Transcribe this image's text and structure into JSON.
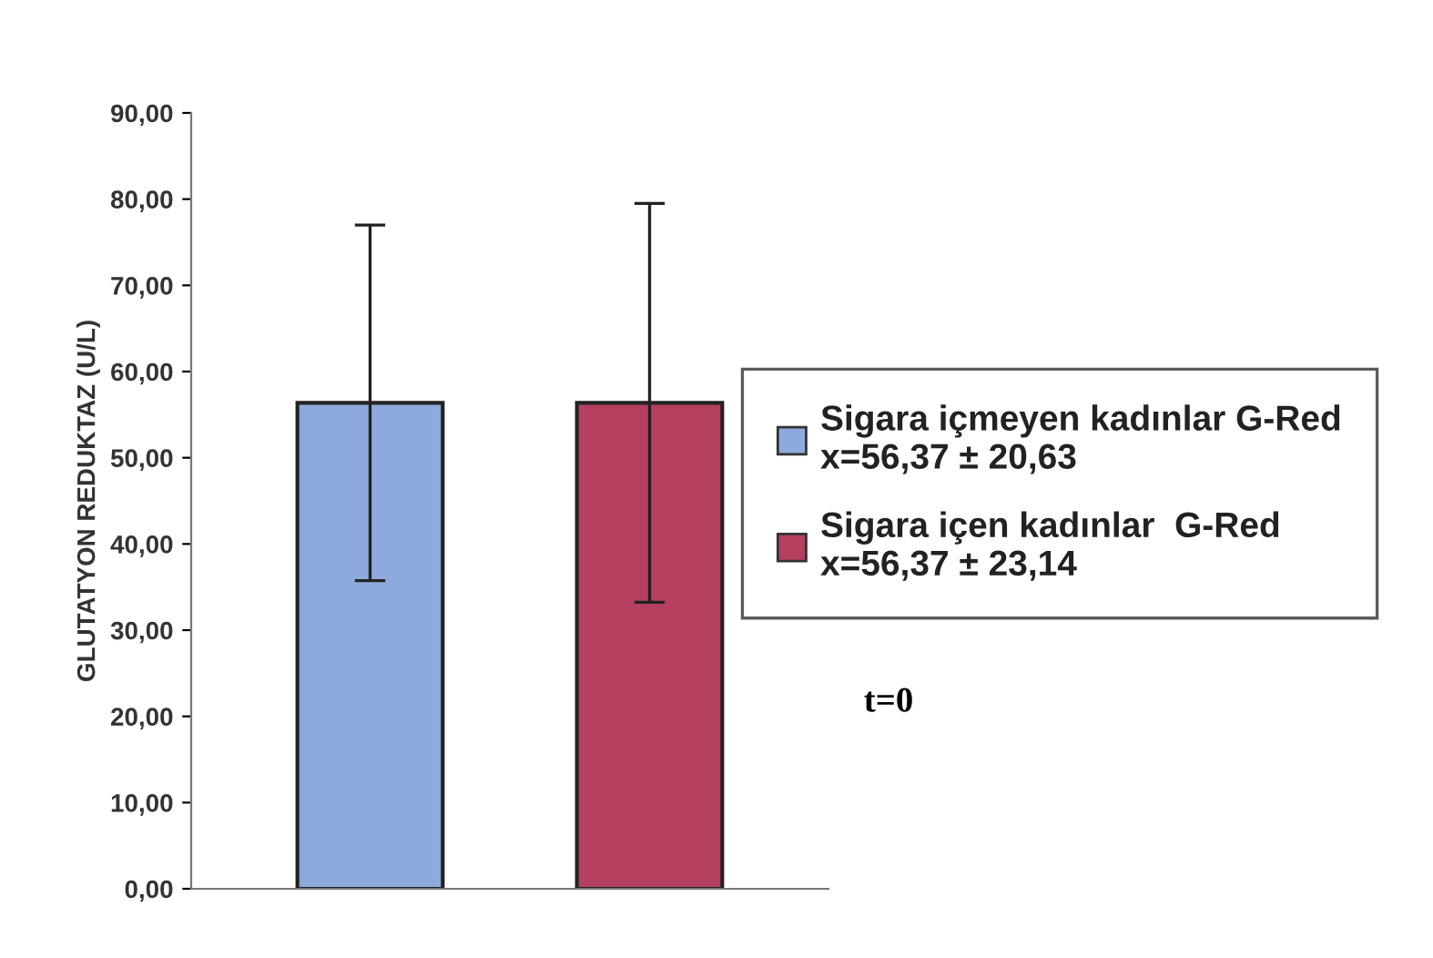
{
  "chart_data": {
    "type": "bar",
    "ylabel": "GLUTATYON REDUKTAZ (U/L)",
    "categories": [
      null,
      null
    ],
    "series": [
      {
        "name": "Sigara içmeyen kadınlar G-Red\nx=56,37 ± 20,63",
        "color": "#8eaadc",
        "values": [
          56.37,
          null
        ],
        "errors": [
          20.63,
          null
        ]
      },
      {
        "name": "Sigara içen kadınlar  G-Red\nx=56,37 ± 23,14",
        "color": "#b5405f",
        "values": [
          null,
          56.37
        ],
        "errors": [
          null,
          23.14
        ]
      }
    ],
    "ylim": [
      0,
      90
    ],
    "yticks": [
      {
        "value": 0,
        "label": "0,00"
      },
      {
        "value": 10,
        "label": "10,00"
      },
      {
        "value": 20,
        "label": "20,00"
      },
      {
        "value": 30,
        "label": "30,00"
      },
      {
        "value": 40,
        "label": "40,00"
      },
      {
        "value": 50,
        "label": "50,00"
      },
      {
        "value": 60,
        "label": "60,00"
      },
      {
        "value": 70,
        "label": "70,00"
      },
      {
        "value": 80,
        "label": "80,00"
      },
      {
        "value": 90,
        "label": "90,00"
      }
    ],
    "annotations": [
      "t=0"
    ],
    "legend": "right",
    "grid": false
  }
}
